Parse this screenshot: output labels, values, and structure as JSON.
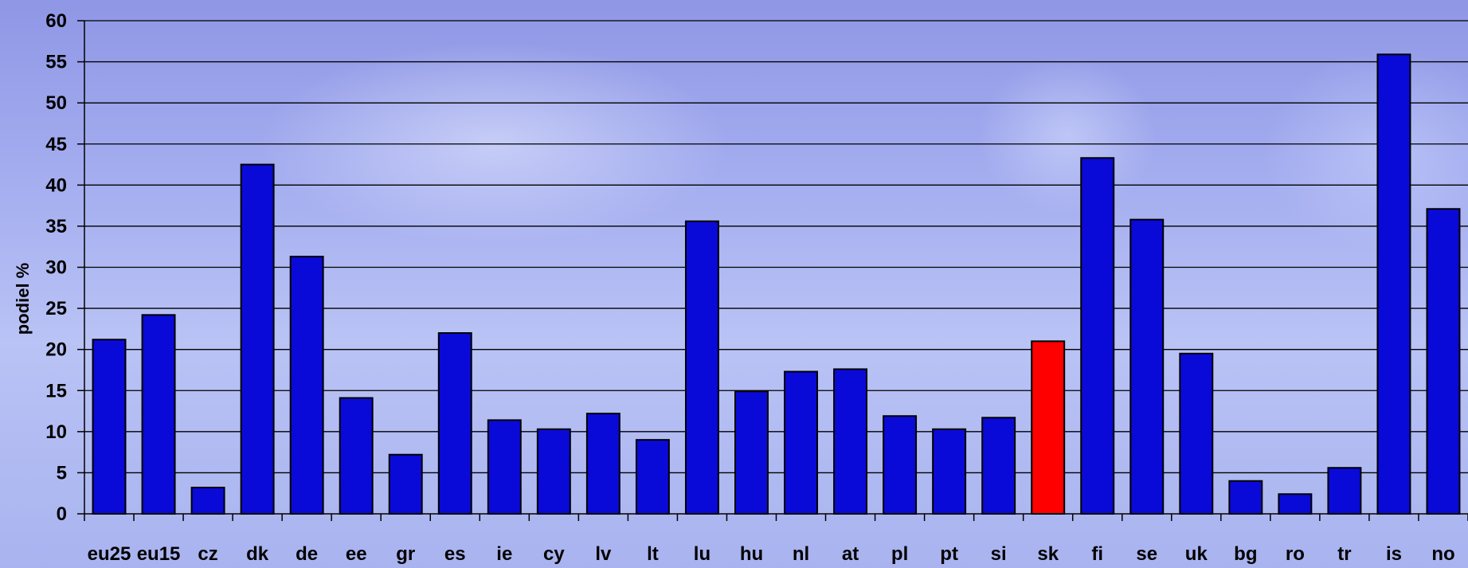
{
  "chart_data": {
    "type": "bar",
    "title": "",
    "xlabel": "",
    "ylabel": "podiel %",
    "ylim": [
      0,
      60
    ],
    "yticks": [
      0,
      5,
      10,
      15,
      20,
      25,
      30,
      35,
      40,
      45,
      50,
      55,
      60
    ],
    "grid": true,
    "categories": [
      "eu25",
      "eu15",
      "cz",
      "dk",
      "de",
      "ee",
      "gr",
      "es",
      "ie",
      "cy",
      "lv",
      "lt",
      "lu",
      "hu",
      "nl",
      "at",
      "pl",
      "pt",
      "si",
      "sk",
      "fi",
      "se",
      "uk",
      "bg",
      "ro",
      "tr",
      "is",
      "no"
    ],
    "values": [
      21.2,
      24.2,
      3.2,
      42.5,
      31.3,
      14.1,
      7.2,
      22.0,
      11.4,
      10.3,
      12.2,
      9.0,
      35.6,
      14.9,
      17.3,
      17.6,
      11.9,
      10.3,
      11.7,
      21.0,
      43.3,
      35.8,
      19.5,
      4.0,
      2.4,
      5.6,
      55.9,
      37.1
    ],
    "highlight": "sk",
    "colors": {
      "bar": "#0a0ad8",
      "highlight": "#ff0000",
      "grid": "#000000"
    }
  }
}
